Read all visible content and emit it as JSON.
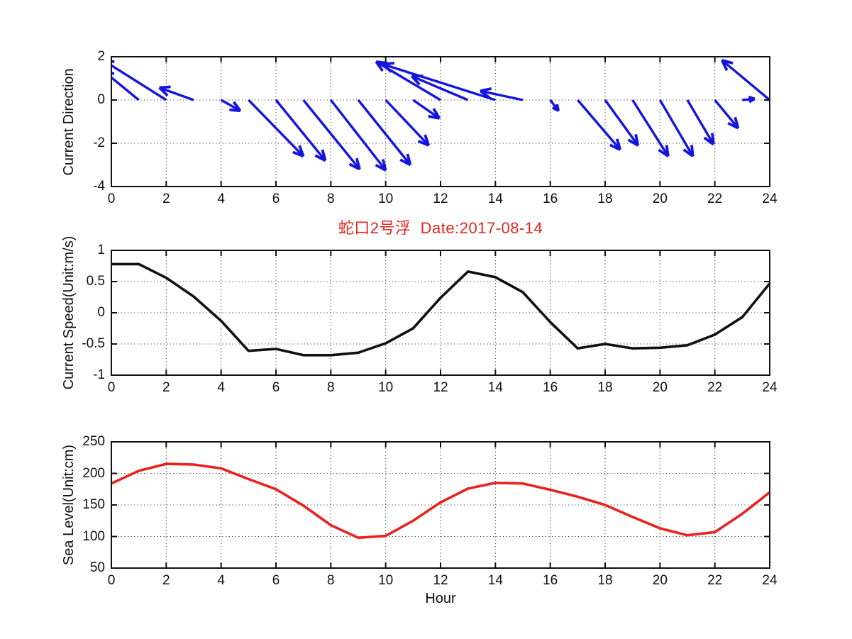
{
  "title": {
    "text": "蛇口2号浮  Date:2017-08-14",
    "color": "#e5261f"
  },
  "xlabel": "Hour",
  "chart_data": [
    {
      "id": "current-direction",
      "type": "quiver",
      "ylabel": "Current Direction",
      "xlim": [
        0,
        24
      ],
      "ylim": [
        -4,
        2
      ],
      "xticks": [
        0,
        2,
        4,
        6,
        8,
        10,
        12,
        14,
        16,
        18,
        20,
        22,
        24
      ],
      "xtick_labels": [
        "0",
        "2",
        "4",
        "6",
        "8",
        "10",
        "12",
        "14",
        "16",
        "18",
        "20",
        "22",
        "24"
      ],
      "yticks": [
        2,
        0,
        -2,
        -4
      ],
      "ytick_labels": [
        "2",
        "0",
        "-2",
        "-4"
      ],
      "grid": true,
      "color": "#1414e0",
      "arrows": [
        {
          "h": 0,
          "u": -1.5,
          "v": 1.5
        },
        {
          "h": 1,
          "u": -1.3,
          "v": 1.35
        },
        {
          "h": 2,
          "u": -2.3,
          "v": 1.84
        },
        {
          "h": 3,
          "u": -1.25,
          "v": 0.57
        },
        {
          "h": 4,
          "u": 0.7,
          "v": -0.5
        },
        {
          "h": 5,
          "u": 2.0,
          "v": -2.6
        },
        {
          "h": 6,
          "u": 1.8,
          "v": -2.8
        },
        {
          "h": 7,
          "u": 2.05,
          "v": -3.2
        },
        {
          "h": 8,
          "u": 2.0,
          "v": -3.25
        },
        {
          "h": 9,
          "u": 1.9,
          "v": -3.0
        },
        {
          "h": 10,
          "u": 1.57,
          "v": -2.1
        },
        {
          "h": 11,
          "u": 0.96,
          "v": -0.85
        },
        {
          "h": 12,
          "u": -2.35,
          "v": 1.77
        },
        {
          "h": 13,
          "u": -2.05,
          "v": 1.1
        },
        {
          "h": 14,
          "u": -4.1,
          "v": 1.65
        },
        {
          "h": 15,
          "u": -1.55,
          "v": 0.42
        },
        {
          "h": 16,
          "u": 0.3,
          "v": -0.5
        },
        {
          "h": 17,
          "u": 1.55,
          "v": -2.3
        },
        {
          "h": 18,
          "u": 1.2,
          "v": -2.1
        },
        {
          "h": 19,
          "u": 1.3,
          "v": -2.6
        },
        {
          "h": 20,
          "u": 1.2,
          "v": -2.6
        },
        {
          "h": 21,
          "u": 0.95,
          "v": -2.05
        },
        {
          "h": 22,
          "u": 0.85,
          "v": -1.3
        },
        {
          "h": 23,
          "u": 0.45,
          "v": 0.05
        },
        {
          "h": 24,
          "u": -1.74,
          "v": 1.84
        }
      ]
    },
    {
      "id": "current-speed",
      "type": "line",
      "ylabel": "Current Speed(Unit:m/s)",
      "xlim": [
        0,
        24
      ],
      "ylim": [
        -1,
        1
      ],
      "xticks": [
        0,
        2,
        4,
        6,
        8,
        10,
        12,
        14,
        16,
        18,
        20,
        22,
        24
      ],
      "xtick_labels": [
        "0",
        "2",
        "4",
        "6",
        "8",
        "10",
        "12",
        "14",
        "16",
        "18",
        "20",
        "22",
        "24"
      ],
      "yticks": [
        1,
        0.5,
        0,
        -0.5,
        -1
      ],
      "ytick_labels": [
        "1",
        "0.5",
        "0",
        "-0.5",
        "-1"
      ],
      "grid": true,
      "color": "#101010",
      "x": [
        0,
        1,
        2,
        3,
        4,
        5,
        6,
        7,
        8,
        9,
        10,
        11,
        12,
        13,
        14,
        15,
        16,
        17,
        18,
        19,
        20,
        21,
        22,
        23,
        24
      ],
      "y": [
        0.78,
        0.78,
        0.56,
        0.26,
        -0.13,
        -0.61,
        -0.58,
        -0.68,
        -0.68,
        -0.64,
        -0.49,
        -0.25,
        0.24,
        0.66,
        0.57,
        0.33,
        -0.15,
        -0.57,
        -0.5,
        -0.57,
        -0.56,
        -0.52,
        -0.35,
        -0.07,
        0.47
      ]
    },
    {
      "id": "sea-level",
      "type": "line",
      "ylabel": "Sea Level(Unit:cm)",
      "xlim": [
        0,
        24
      ],
      "ylim": [
        50,
        250
      ],
      "xticks": [
        0,
        2,
        4,
        6,
        8,
        10,
        12,
        14,
        16,
        18,
        20,
        22,
        24
      ],
      "xtick_labels": [
        "0",
        "2",
        "4",
        "6",
        "8",
        "10",
        "12",
        "14",
        "16",
        "18",
        "20",
        "22",
        "24"
      ],
      "yticks": [
        250,
        200,
        150,
        100,
        50
      ],
      "ytick_labels": [
        "250",
        "200",
        "150",
        "100",
        "50"
      ],
      "grid": true,
      "color": "#e8231e",
      "x": [
        0,
        1,
        2,
        3,
        4,
        5,
        6,
        7,
        8,
        9,
        10,
        11,
        12,
        13,
        14,
        15,
        16,
        17,
        18,
        19,
        20,
        21,
        22,
        23,
        24
      ],
      "y": [
        184,
        204,
        215,
        214,
        208,
        191,
        175,
        149,
        118,
        98,
        101,
        125,
        154,
        176,
        185,
        184,
        174,
        163,
        150,
        131,
        113,
        102,
        107,
        136,
        170
      ]
    }
  ]
}
